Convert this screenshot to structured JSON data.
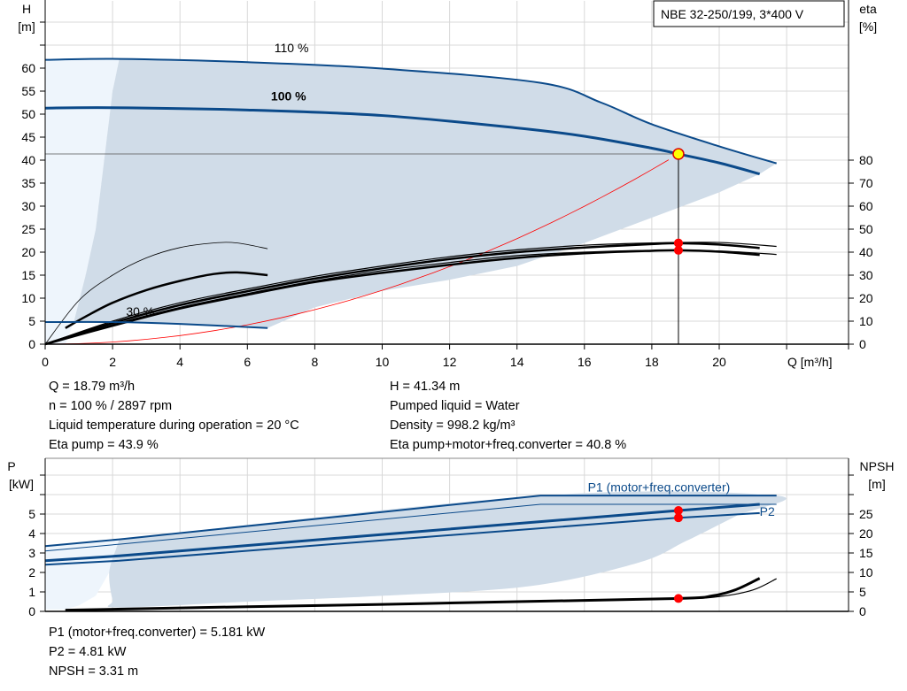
{
  "chart_data": [
    {
      "type": "line",
      "title": "NBE 32-250/199, 3*400 V",
      "xlabel": "Q [m³/h]",
      "ylabel": [
        "H",
        "[m]"
      ],
      "y2label": [
        "eta",
        "[%]"
      ],
      "xlim": [
        0,
        24
      ],
      "ylim": [
        0,
        75
      ],
      "y2lim": [
        0,
        144
      ],
      "x_ticks": [
        0,
        2,
        4,
        6,
        8,
        10,
        12,
        14,
        16,
        18,
        20
      ],
      "y_ticks": [
        0,
        5,
        10,
        15,
        20,
        25,
        30,
        35,
        40,
        45,
        50,
        55,
        60
      ],
      "y2_ticks": [
        0,
        10,
        20,
        30,
        40,
        50,
        60,
        70,
        80
      ],
      "grid": true,
      "colors": {
        "curve": "#0b4a8a",
        "area": "#d0dce8",
        "area_light": "#eef5fc",
        "eta": "#000000",
        "system": "#ff0000",
        "point": "#ff0000",
        "duty_point": "#ffff00"
      },
      "curve_labels": [
        {
          "text": "110 %",
          "x": 6.8,
          "y": 63.5
        },
        {
          "text": "100 %",
          "x": 6.7,
          "y": 53
        },
        {
          "text": "30 %",
          "x": 2.4,
          "y": 6.2
        }
      ],
      "head_series": [
        {
          "name": "110 %",
          "width": 2,
          "points": [
            [
              0,
              61.8
            ],
            [
              2.2,
              62
            ],
            [
              6,
              61.3
            ],
            [
              10,
              59.9
            ],
            [
              14.7,
              56.8
            ],
            [
              16.5,
              52.5
            ],
            [
              18,
              47.8
            ],
            [
              20,
              43
            ],
            [
              21.7,
              39.3
            ]
          ]
        },
        {
          "name": "100 %",
          "width": 3,
          "points": [
            [
              0,
              51.3
            ],
            [
              2,
              51.4
            ],
            [
              6,
              50.9
            ],
            [
              10,
              49.7
            ],
            [
              14,
              47
            ],
            [
              16,
              45.2
            ],
            [
              18,
              42.6
            ],
            [
              18.79,
              41.34
            ],
            [
              20,
              39.4
            ],
            [
              21.2,
              37
            ]
          ]
        },
        {
          "name": "30 %",
          "width": 2,
          "points": [
            [
              0,
              4.8
            ],
            [
              2,
              4.8
            ],
            [
              4,
              4.4
            ],
            [
              6.6,
              3.5
            ]
          ]
        }
      ],
      "eta_series": [
        {
          "width": 0.8,
          "points": [
            [
              0,
              0
            ],
            [
              1,
              19
            ],
            [
              2,
              30
            ],
            [
              3,
              37.5
            ],
            [
              4,
              42
            ],
            [
              5,
              44
            ],
            [
              5.7,
              44
            ],
            [
              6.6,
              41.5
            ]
          ]
        },
        {
          "width": 2.5,
          "points": [
            [
              0.6,
              7
            ],
            [
              1.2,
              12
            ],
            [
              2,
              18
            ],
            [
              3,
              23.5
            ],
            [
              4,
              27.5
            ],
            [
              5,
              30.5
            ],
            [
              5.7,
              31.2
            ],
            [
              6.6,
              30
            ]
          ]
        },
        {
          "width": 1.2,
          "points": [
            [
              0,
              0
            ],
            [
              2,
              10
            ],
            [
              4,
              18
            ],
            [
              6,
              24
            ],
            [
              8,
              29.5
            ],
            [
              10,
              34
            ],
            [
              12,
              38
            ],
            [
              14,
              41
            ],
            [
              16,
              43
            ],
            [
              18,
              44
            ],
            [
              20,
              44.2
            ],
            [
              21.7,
              42.5
            ]
          ]
        },
        {
          "width": 2.5,
          "points": [
            [
              0,
              0
            ],
            [
              2,
              9.2
            ],
            [
              4,
              17
            ],
            [
              6,
              23
            ],
            [
              8,
              28.5
            ],
            [
              10,
              33
            ],
            [
              12,
              37
            ],
            [
              14,
              40
            ],
            [
              16,
              42
            ],
            [
              18,
              43.5
            ],
            [
              18.79,
              43.9
            ],
            [
              20,
              43.3
            ],
            [
              21.2,
              41.8
            ]
          ]
        },
        {
          "width": 1.2,
          "points": [
            [
              0,
              0
            ],
            [
              2,
              8.5
            ],
            [
              4,
              16
            ],
            [
              6,
              22
            ],
            [
              8,
              27.5
            ],
            [
              10,
              32
            ],
            [
              12,
              35.5
            ],
            [
              14,
              38.5
            ],
            [
              16,
              40
            ],
            [
              18,
              40.8
            ],
            [
              20,
              40.5
            ],
            [
              21.7,
              39
            ]
          ]
        },
        {
          "width": 2.5,
          "points": [
            [
              0,
              0
            ],
            [
              2,
              8
            ],
            [
              4,
              15.5
            ],
            [
              6,
              21.5
            ],
            [
              8,
              27
            ],
            [
              10,
              31
            ],
            [
              12,
              34.5
            ],
            [
              14,
              37.5
            ],
            [
              16,
              39.5
            ],
            [
              18,
              40.6
            ],
            [
              18.79,
              40.8
            ],
            [
              20,
              40.2
            ],
            [
              21.2,
              38.8
            ]
          ]
        }
      ],
      "system_curve": {
        "k": 0.1171,
        "q_max": 18.79
      },
      "area_upper": [
        [
          2.2,
          62
        ],
        [
          6,
          61.3
        ],
        [
          10,
          59.9
        ],
        [
          14.7,
          56.8
        ],
        [
          16.5,
          52.5
        ],
        [
          18,
          47.8
        ],
        [
          20,
          43
        ],
        [
          21.7,
          39.3
        ]
      ],
      "area_lower": [
        [
          21.2,
          37
        ],
        [
          20,
          33
        ],
        [
          18,
          27.5
        ],
        [
          16,
          22
        ],
        [
          14,
          17
        ],
        [
          12,
          14
        ],
        [
          10,
          11.6
        ],
        [
          8,
          8
        ],
        [
          6.6,
          3.5
        ],
        [
          4,
          4.4
        ],
        [
          2,
          4.8
        ],
        [
          0.85,
          4.8
        ],
        [
          1.2,
          15
        ],
        [
          1.5,
          25
        ],
        [
          1.75,
          40
        ],
        [
          2,
          55
        ],
        [
          2.2,
          62
        ]
      ],
      "light_area": [
        [
          0,
          61.8
        ],
        [
          2.2,
          62
        ],
        [
          2,
          55
        ],
        [
          1.75,
          40
        ],
        [
          1.5,
          25
        ],
        [
          1.2,
          15
        ],
        [
          0.85,
          4.8
        ],
        [
          0.6,
          0
        ],
        [
          0,
          0
        ]
      ],
      "duty_point": {
        "q": 18.79,
        "h": 41.34
      },
      "eta_points": [
        44,
        43.9,
        40.8
      ]
    },
    {
      "type": "line",
      "xlabel": "",
      "ylabel": [
        "P",
        "[kW]"
      ],
      "y2label": [
        "NPSH",
        "[m]"
      ],
      "xlim": [
        0,
        24
      ],
      "ylim": [
        0,
        7.9
      ],
      "y2lim": [
        0,
        39.5
      ],
      "y_ticks": [
        0,
        1,
        2,
        3,
        4,
        5
      ],
      "y2_ticks": [
        0,
        5,
        10,
        15,
        20,
        25
      ],
      "grid": true,
      "curve_labels": [
        {
          "text": "P1 (motor+freq.converter)",
          "x": 16.1,
          "y": 6.15
        },
        {
          "text": "P2",
          "x": 21.2,
          "y": 4.9
        }
      ],
      "power_series": [
        {
          "width": 2,
          "points": [
            [
              0,
              3.35
            ],
            [
              2.2,
              3.7
            ],
            [
              14.7,
              5.95
            ],
            [
              21.7,
              5.95
            ]
          ]
        },
        {
          "width": 1,
          "points": [
            [
              0,
              3.1
            ],
            [
              2.2,
              3.45
            ],
            [
              14.7,
              5.5
            ],
            [
              21.7,
              5.5
            ]
          ]
        },
        {
          "width": 3,
          "points": [
            [
              0,
              2.6
            ],
            [
              2.2,
              2.85
            ],
            [
              10,
              3.95
            ],
            [
              18.79,
              5.181
            ],
            [
              21.2,
              5.5
            ]
          ]
        },
        {
          "width": 2,
          "points": [
            [
              0,
              2.4
            ],
            [
              2.2,
              2.6
            ],
            [
              10,
              3.65
            ],
            [
              18.79,
              4.81
            ],
            [
              21.2,
              5.05
            ]
          ]
        }
      ],
      "npsh_series": [
        {
          "width": 3,
          "points": [
            [
              0.6,
              0.3
            ],
            [
              6,
              1.2
            ],
            [
              10,
              1.8
            ],
            [
              14,
              2.5
            ],
            [
              18.79,
              3.31
            ],
            [
              19.8,
              4
            ],
            [
              20.5,
              5.6
            ],
            [
              21.2,
              8.5
            ]
          ]
        },
        {
          "width": 1.2,
          "points": [
            [
              0.6,
              0.3
            ],
            [
              6,
              1.1
            ],
            [
              10,
              1.7
            ],
            [
              14,
              2.4
            ],
            [
              18.79,
              3.2
            ],
            [
              20,
              3.8
            ],
            [
              21,
              5.5
            ],
            [
              21.7,
              8.4
            ]
          ]
        }
      ],
      "area": [
        [
          2.2,
          3.7
        ],
        [
          14.7,
          5.95
        ],
        [
          21.7,
          5.95
        ],
        [
          20.5,
          4.9
        ],
        [
          19,
          3.6
        ],
        [
          17.6,
          2.5
        ],
        [
          14.4,
          1.3
        ],
        [
          10,
          0.8
        ],
        [
          6,
          0.5
        ],
        [
          2.2,
          0.2
        ],
        [
          2,
          0.6
        ],
        [
          1.9,
          2
        ],
        [
          2.1,
          3.2
        ]
      ],
      "light_area": [
        [
          0,
          3.35
        ],
        [
          2.2,
          3.7
        ],
        [
          2.1,
          3.2
        ],
        [
          1.9,
          2
        ],
        [
          1.5,
          0.8
        ],
        [
          1,
          0.3
        ],
        [
          0.6,
          0.1
        ],
        [
          0,
          0.1
        ]
      ],
      "duty_points_p": [
        5.181,
        4.81
      ],
      "duty_point_npsh": 3.31
    }
  ],
  "info_top": {
    "left": [
      "Q = 18.79 m³/h",
      "n = 100 % / 2897 rpm",
      "Liquid temperature during operation = 20 °C",
      "Eta pump = 43.9 %"
    ],
    "right": [
      "H = 41.34 m",
      "Pumped liquid = Water",
      "Density = 998.2 kg/m³",
      "Eta pump+motor+freq.converter = 40.8 %"
    ]
  },
  "info_bottom": [
    "P1 (motor+freq.converter) = 5.181 kW",
    "P2 = 4.81 kW",
    "NPSH = 3.31 m"
  ]
}
